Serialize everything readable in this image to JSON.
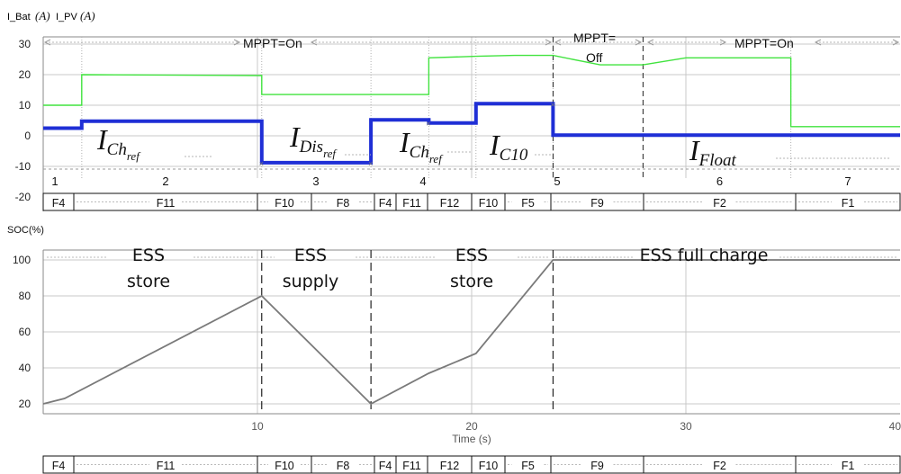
{
  "colors": {
    "bat": "#1f2fd6",
    "pv": "#41e33f",
    "soc": "#7a7a7a",
    "grid": "#c8c8c8",
    "axis": "#8a8a8a",
    "bar_arrow": "#9a9a9a"
  },
  "chart_data": [
    {
      "type": "line",
      "title": "",
      "legend": [
        {
          "name": "I_Bat",
          "unit": "(A)"
        },
        {
          "name": "I_PV",
          "unit": "(A)"
        }
      ],
      "xlim": [
        0,
        40
      ],
      "ylim": [
        -20,
        33
      ],
      "yticks": [
        "30",
        "20",
        "10",
        "0",
        "-10",
        "-20"
      ],
      "grid": true,
      "series": [
        {
          "name": "I_Bat",
          "color_key": "bat",
          "x": [
            0,
            1.8,
            1.8,
            10.2,
            10.2,
            15.3,
            15.3,
            18.0,
            18.0,
            20.2,
            20.2,
            23.8,
            23.8,
            40
          ],
          "y": [
            2.5,
            2.5,
            4.8,
            4.8,
            -8.8,
            -8.8,
            5.2,
            5.2,
            4.2,
            4.2,
            10.5,
            10.5,
            0.2,
            0.2
          ]
        },
        {
          "name": "I_PV",
          "color_key": "pv",
          "x": [
            0,
            1.8,
            1.8,
            10.2,
            10.2,
            18.0,
            18.0,
            20.2,
            22.0,
            23.8,
            26.0,
            28.0,
            30.0,
            34.9,
            34.9,
            40
          ],
          "y": [
            10,
            10,
            20,
            19.7,
            13.5,
            13.5,
            25.5,
            26,
            26.3,
            26.3,
            23.2,
            23.2,
            25.5,
            25.5,
            3.0,
            3.0
          ]
        }
      ],
      "dividers_x": [
        23.8,
        28.0
      ],
      "annotations": {
        "mppt_on_1": "MPPT=On",
        "mppt_off_top": "MPPT=",
        "mppt_off_bottom": "Off",
        "mppt_on_2": "MPPT=On"
      },
      "current_labels": [
        {
          "base": "I",
          "sub": "Ch",
          "subsub": "ref"
        },
        {
          "base": "I",
          "sub": "Dis",
          "subsub": "ref"
        },
        {
          "base": "I",
          "sub": "Ch",
          "subsub": "ref"
        },
        {
          "base": "I",
          "sub": "C10",
          "subsub": ""
        },
        {
          "base": "I",
          "sub": "Float",
          "subsub": ""
        }
      ],
      "segments": [
        "1",
        "2",
        "3",
        "4",
        "5",
        "6",
        "7"
      ],
      "bands": [
        "F4",
        "F11",
        "F10",
        "F8",
        "F4",
        "F11",
        "F12",
        "F10",
        "F5",
        "F9",
        "F2",
        "F1"
      ]
    },
    {
      "type": "line",
      "ylabel": "SOC(%)",
      "xlabel": "Time (s)",
      "xlim": [
        0,
        40
      ],
      "ylim": [
        15,
        105
      ],
      "yticks": [
        "100",
        "80",
        "60",
        "40",
        "20"
      ],
      "xticks": [
        "10",
        "20",
        "30",
        "40"
      ],
      "grid": true,
      "series": [
        {
          "name": "SOC",
          "color_key": "soc",
          "x": [
            0,
            1.0,
            10.2,
            15.3,
            18.0,
            20.2,
            23.8,
            40
          ],
          "y": [
            20,
            23,
            80,
            20,
            37,
            48,
            100,
            100
          ]
        }
      ],
      "dividers_x": [
        10.2,
        15.3,
        23.8
      ],
      "phase_labels": [
        {
          "line1": "ESS",
          "line2": "store"
        },
        {
          "line1": "ESS",
          "line2": "supply"
        },
        {
          "line1": "ESS",
          "line2": "store"
        },
        {
          "line1": "ESS full charge",
          "line2": ""
        }
      ],
      "bands": [
        "F4",
        "F11",
        "F10",
        "F8",
        "F4",
        "F11",
        "F12",
        "F10",
        "F5",
        "F9",
        "F2",
        "F1"
      ]
    }
  ]
}
